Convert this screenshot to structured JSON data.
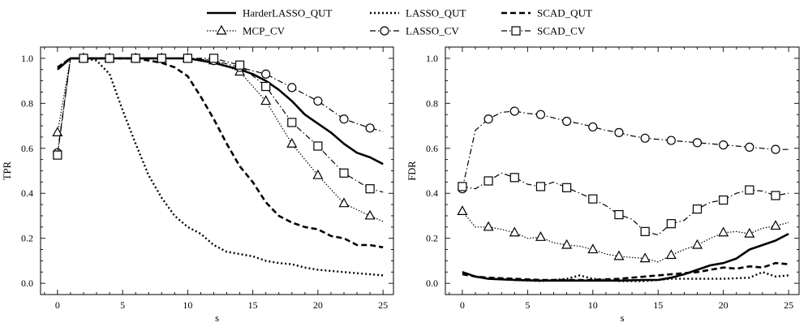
{
  "legend": {
    "entries": [
      {
        "key": "harder",
        "label": "HarderLASSO_QUT"
      },
      {
        "key": "lassoqut",
        "label": "LASSO_QUT"
      },
      {
        "key": "scadqut",
        "label": "SCAD_QUT"
      },
      {
        "key": "mcpcv",
        "label": "MCP_CV"
      },
      {
        "key": "lassocv",
        "label": "LASSO_CV"
      },
      {
        "key": "scadcv",
        "label": "SCAD_CV"
      }
    ]
  },
  "styles": {
    "harder": {
      "dash": "",
      "width": 2.6,
      "marker": "none"
    },
    "lassoqut": {
      "dash": "2,3",
      "width": 2.4,
      "marker": "none"
    },
    "scadqut": {
      "dash": "7,4",
      "width": 2.6,
      "marker": "none"
    },
    "mcpcv": {
      "dash": "1.5,2",
      "width": 1.2,
      "marker": "triangle"
    },
    "lassocv": {
      "dash": "7,3,1.5,3",
      "width": 1.2,
      "marker": "circle"
    },
    "scadcv": {
      "dash": "7,3,1.5,3",
      "width": 1.2,
      "marker": "square"
    }
  },
  "chart_data": [
    {
      "type": "line",
      "ylabel": "TPR",
      "xlabel": "s",
      "xlim": [
        -1.3,
        25.8
      ],
      "ylim": [
        -0.05,
        1.05
      ],
      "xticks": [
        0,
        5,
        10,
        15,
        20,
        25
      ],
      "yticks": [
        0.0,
        0.2,
        0.4,
        0.6,
        0.8,
        1.0
      ],
      "ytick_labels": [
        "0.0",
        "0.2",
        "0.4",
        "0.6",
        "0.8",
        "1.0"
      ],
      "series": [
        {
          "key": "harder",
          "name": "HarderLASSO_QUT",
          "x": [
            0,
            1,
            2,
            4,
            6,
            8,
            10,
            12,
            13,
            14,
            15,
            16,
            17,
            18,
            19,
            20,
            21,
            22,
            23,
            24,
            25
          ],
          "y": [
            0.95,
            1.0,
            1.0,
            1.0,
            1.0,
            1.0,
            1.0,
            0.98,
            0.965,
            0.95,
            0.93,
            0.9,
            0.86,
            0.81,
            0.75,
            0.71,
            0.67,
            0.62,
            0.58,
            0.56,
            0.53
          ]
        },
        {
          "key": "lassoqut",
          "name": "LASSO_QUT",
          "x": [
            0,
            1,
            2,
            3,
            4,
            5,
            6,
            7,
            8,
            9,
            10,
            11,
            12,
            13,
            14,
            15,
            16,
            17,
            18,
            19,
            20,
            21,
            22,
            23,
            24,
            25
          ],
          "y": [
            0.96,
            1.0,
            1.0,
            0.99,
            0.93,
            0.77,
            0.62,
            0.48,
            0.38,
            0.3,
            0.25,
            0.22,
            0.17,
            0.14,
            0.13,
            0.12,
            0.1,
            0.09,
            0.085,
            0.07,
            0.06,
            0.055,
            0.05,
            0.045,
            0.04,
            0.035
          ]
        },
        {
          "key": "scadqut",
          "name": "SCAD_QUT",
          "x": [
            0,
            1,
            2,
            4,
            6,
            7,
            8,
            9,
            10,
            11,
            12,
            13,
            14,
            15,
            16,
            17,
            18,
            19,
            20,
            21,
            22,
            23,
            24,
            25
          ],
          "y": [
            0.96,
            1.0,
            1.0,
            1.0,
            1.0,
            0.99,
            0.98,
            0.96,
            0.92,
            0.83,
            0.73,
            0.62,
            0.52,
            0.45,
            0.36,
            0.3,
            0.27,
            0.25,
            0.24,
            0.21,
            0.2,
            0.17,
            0.17,
            0.16
          ]
        },
        {
          "key": "mcpcv",
          "name": "MCP_CV",
          "x": [
            0,
            1,
            2,
            4,
            6,
            8,
            10,
            12,
            14,
            16,
            18,
            20,
            22,
            24,
            25
          ],
          "y": [
            0.67,
            1.0,
            1.0,
            1.0,
            1.0,
            1.0,
            1.0,
            0.99,
            0.94,
            0.81,
            0.62,
            0.48,
            0.355,
            0.3,
            0.275
          ],
          "markers_at": [
            0,
            2,
            4,
            6,
            8,
            10,
            12,
            14,
            16,
            18,
            20,
            22,
            24
          ]
        },
        {
          "key": "lassocv",
          "name": "LASSO_CV",
          "x": [
            0,
            1,
            2,
            4,
            6,
            8,
            10,
            12,
            14,
            16,
            18,
            20,
            22,
            24,
            25
          ],
          "y": [
            0.58,
            1.0,
            1.0,
            1.0,
            1.0,
            1.0,
            1.0,
            0.99,
            0.96,
            0.93,
            0.87,
            0.81,
            0.73,
            0.69,
            0.675
          ],
          "markers_at": [
            0,
            2,
            4,
            6,
            8,
            10,
            12,
            14,
            16,
            18,
            20,
            22,
            24
          ]
        },
        {
          "key": "scadcv",
          "name": "SCAD_CV",
          "x": [
            0,
            1,
            2,
            4,
            6,
            8,
            10,
            12,
            14,
            16,
            18,
            20,
            22,
            24,
            25
          ],
          "y": [
            0.57,
            1.0,
            1.0,
            1.0,
            1.0,
            1.0,
            1.0,
            1.0,
            0.97,
            0.875,
            0.715,
            0.61,
            0.49,
            0.42,
            0.405
          ],
          "markers_at": [
            0,
            2,
            4,
            6,
            8,
            10,
            12,
            14,
            16,
            18,
            20,
            22,
            24
          ]
        }
      ]
    },
    {
      "type": "line",
      "ylabel": "FDR",
      "xlabel": "s",
      "xlim": [
        -1.3,
        25.8
      ],
      "ylim": [
        -0.05,
        1.05
      ],
      "xticks": [
        0,
        5,
        10,
        15,
        20,
        25
      ],
      "yticks": [
        0.0,
        0.2,
        0.4,
        0.6,
        0.8,
        1.0
      ],
      "ytick_labels": [
        "0.0",
        "0.2",
        "0.4",
        "0.6",
        "0.8",
        "1.0"
      ],
      "series": [
        {
          "key": "harder",
          "name": "HarderLASSO_QUT",
          "x": [
            0,
            1,
            2,
            4,
            6,
            8,
            10,
            12,
            14,
            15,
            16,
            17,
            18,
            19,
            20,
            21,
            22,
            23,
            24,
            25
          ],
          "y": [
            0.05,
            0.03,
            0.02,
            0.015,
            0.012,
            0.012,
            0.012,
            0.012,
            0.015,
            0.015,
            0.025,
            0.04,
            0.06,
            0.08,
            0.09,
            0.11,
            0.15,
            0.17,
            0.19,
            0.22
          ]
        },
        {
          "key": "lassoqut",
          "name": "LASSO_QUT",
          "x": [
            0,
            1,
            2,
            4,
            6,
            8,
            9,
            10,
            12,
            14,
            16,
            18,
            20,
            22,
            23,
            24,
            25
          ],
          "y": [
            0.05,
            0.03,
            0.02,
            0.015,
            0.01,
            0.02,
            0.035,
            0.02,
            0.01,
            0.01,
            0.02,
            0.02,
            0.02,
            0.025,
            0.05,
            0.03,
            0.035
          ]
        },
        {
          "key": "scadqut",
          "name": "SCAD_QUT",
          "x": [
            0,
            1,
            2,
            4,
            6,
            8,
            10,
            12,
            14,
            16,
            18,
            20,
            21,
            22,
            23,
            24,
            25
          ],
          "y": [
            0.04,
            0.03,
            0.025,
            0.02,
            0.015,
            0.015,
            0.015,
            0.02,
            0.03,
            0.04,
            0.05,
            0.07,
            0.065,
            0.075,
            0.07,
            0.09,
            0.085
          ]
        },
        {
          "key": "mcpcv",
          "name": "MCP_CV",
          "x": [
            0,
            1,
            2,
            3,
            4,
            5,
            6,
            7,
            8,
            9,
            10,
            11,
            12,
            13,
            14,
            15,
            16,
            17,
            18,
            19,
            20,
            21,
            22,
            23,
            24,
            25
          ],
          "y": [
            0.32,
            0.25,
            0.25,
            0.24,
            0.225,
            0.2,
            0.205,
            0.18,
            0.17,
            0.165,
            0.15,
            0.13,
            0.12,
            0.115,
            0.11,
            0.095,
            0.125,
            0.15,
            0.17,
            0.2,
            0.225,
            0.23,
            0.22,
            0.245,
            0.255,
            0.27
          ],
          "markers_at": [
            0,
            2,
            4,
            6,
            8,
            10,
            12,
            14,
            16,
            18,
            20,
            22,
            24
          ]
        },
        {
          "key": "lassocv",
          "name": "LASSO_CV",
          "x": [
            0,
            1,
            2,
            3,
            4,
            5,
            6,
            7,
            8,
            9,
            10,
            11,
            12,
            13,
            14,
            15,
            16,
            17,
            18,
            19,
            20,
            21,
            22,
            23,
            24,
            25
          ],
          "y": [
            0.42,
            0.68,
            0.73,
            0.76,
            0.765,
            0.755,
            0.75,
            0.735,
            0.72,
            0.71,
            0.695,
            0.68,
            0.67,
            0.655,
            0.645,
            0.64,
            0.635,
            0.63,
            0.625,
            0.62,
            0.615,
            0.61,
            0.605,
            0.6,
            0.595,
            0.595
          ],
          "markers_at": [
            0,
            2,
            4,
            6,
            8,
            10,
            12,
            14,
            16,
            18,
            20,
            22,
            24
          ]
        },
        {
          "key": "scadcv",
          "name": "SCAD_CV",
          "x": [
            0,
            1,
            2,
            3,
            4,
            5,
            6,
            7,
            8,
            9,
            10,
            11,
            12,
            13,
            14,
            15,
            16,
            17,
            18,
            19,
            20,
            21,
            22,
            23,
            24,
            25
          ],
          "y": [
            0.43,
            0.42,
            0.455,
            0.49,
            0.47,
            0.44,
            0.43,
            0.45,
            0.425,
            0.4,
            0.375,
            0.345,
            0.305,
            0.285,
            0.23,
            0.215,
            0.265,
            0.28,
            0.33,
            0.36,
            0.37,
            0.4,
            0.415,
            0.41,
            0.39,
            0.4
          ],
          "markers_at": [
            0,
            2,
            4,
            6,
            8,
            10,
            12,
            14,
            16,
            18,
            20,
            22,
            24
          ]
        }
      ]
    }
  ]
}
